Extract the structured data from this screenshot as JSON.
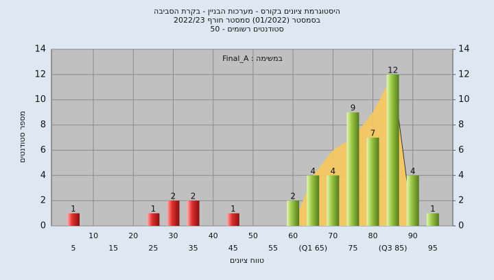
{
  "chart_data": {
    "type": "bar",
    "title": "היסטוגרמת ציונים בקורס - מערכות הבניין - בקרת הסביבה",
    "subtitle": "בסמסטר  (01/2022)  סמסטר חורף  2022/23",
    "subtitle2": "סטודנטים רשומים - 50",
    "annotation": "Final_A : במשימה",
    "y_label": "מספר סטודנטים",
    "x_label": "טווח ציונים",
    "categories": [
      "5",
      "10",
      "15",
      "20",
      "25",
      "30",
      "35",
      "40",
      "45",
      "50",
      "55",
      "60",
      "(Q1 65)",
      "70",
      "75",
      "80",
      "(Q3 85)",
      "90",
      "95"
    ],
    "values": [
      1,
      0,
      0,
      0,
      1,
      2,
      2,
      0,
      1,
      0,
      0,
      2,
      4,
      4,
      9,
      7,
      12,
      4,
      1
    ],
    "colors": [
      "red",
      "red",
      "red",
      "red",
      "red",
      "red",
      "red",
      "red",
      "red",
      "red",
      "red",
      "green",
      "green",
      "green",
      "green",
      "green",
      "green",
      "green",
      "green"
    ],
    "area": {
      "color": "#f7c95c",
      "values": [
        null,
        null,
        null,
        null,
        null,
        null,
        null,
        null,
        null,
        null,
        null,
        0,
        4,
        6,
        7,
        9,
        12,
        0,
        null
      ]
    },
    "ylim": [
      0,
      14
    ],
    "yticks": [
      0,
      2,
      4,
      6,
      8,
      10,
      12,
      14
    ],
    "y2lim": [
      0,
      14
    ],
    "y2ticks": [
      0,
      2,
      4,
      6,
      8,
      10,
      12,
      14
    ],
    "grid": true
  }
}
